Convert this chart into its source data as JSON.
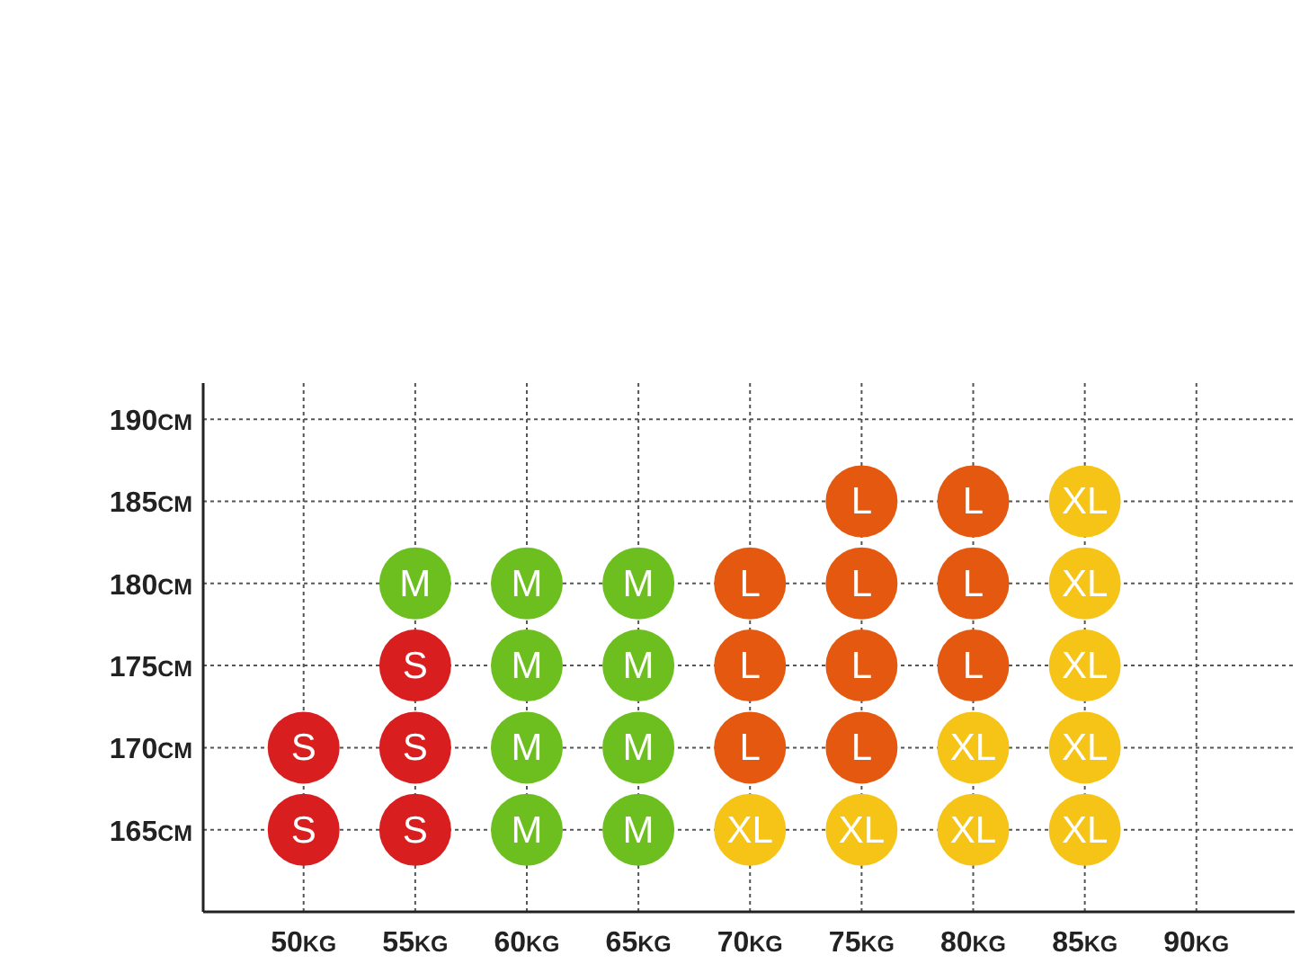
{
  "chart_data": {
    "type": "scatter",
    "marker": "circle",
    "grid": true,
    "legend": false,
    "xlim": [
      45.5,
      94.4
    ],
    "xticks": [
      {
        "value": 50,
        "label": "50KG"
      },
      {
        "value": 55,
        "label": "55KG"
      },
      {
        "value": 60,
        "label": "60KG"
      },
      {
        "value": 65,
        "label": "65KG"
      },
      {
        "value": 70,
        "label": "70KG"
      },
      {
        "value": 75,
        "label": "75KG"
      },
      {
        "value": 80,
        "label": "80KG"
      },
      {
        "value": 85,
        "label": "85KG"
      },
      {
        "value": 90,
        "label": "90KG"
      }
    ],
    "ylim": [
      160,
      192.2
    ],
    "yticks": [
      {
        "value": 165,
        "label": "165CM"
      },
      {
        "value": 170,
        "label": "170CM"
      },
      {
        "value": 175,
        "label": "175CM"
      },
      {
        "value": 180,
        "label": "180CM"
      },
      {
        "value": 185,
        "label": "185CM"
      },
      {
        "value": 190,
        "label": "190CM"
      }
    ],
    "series": [
      {
        "name": "S",
        "color": "#d81e1e",
        "x": [
          50,
          50,
          55,
          55,
          55
        ],
        "values": [
          170,
          165,
          175,
          170,
          165
        ]
      },
      {
        "name": "M",
        "color": "#6cbf1f",
        "x": [
          55,
          60,
          60,
          60,
          60,
          65,
          65,
          65,
          65
        ],
        "values": [
          180,
          180,
          175,
          170,
          165,
          180,
          175,
          170,
          165
        ]
      },
      {
        "name": "L",
        "color": "#e4580f",
        "x": [
          70,
          70,
          70,
          75,
          75,
          75,
          75,
          80,
          80,
          80
        ],
        "values": [
          180,
          175,
          170,
          185,
          180,
          175,
          170,
          185,
          180,
          175
        ]
      },
      {
        "name": "XL",
        "color": "#f6c416",
        "x": [
          70,
          75,
          80,
          80,
          85,
          85,
          85,
          85,
          85
        ],
        "values": [
          165,
          165,
          170,
          165,
          185,
          180,
          175,
          170,
          165
        ]
      }
    ]
  }
}
